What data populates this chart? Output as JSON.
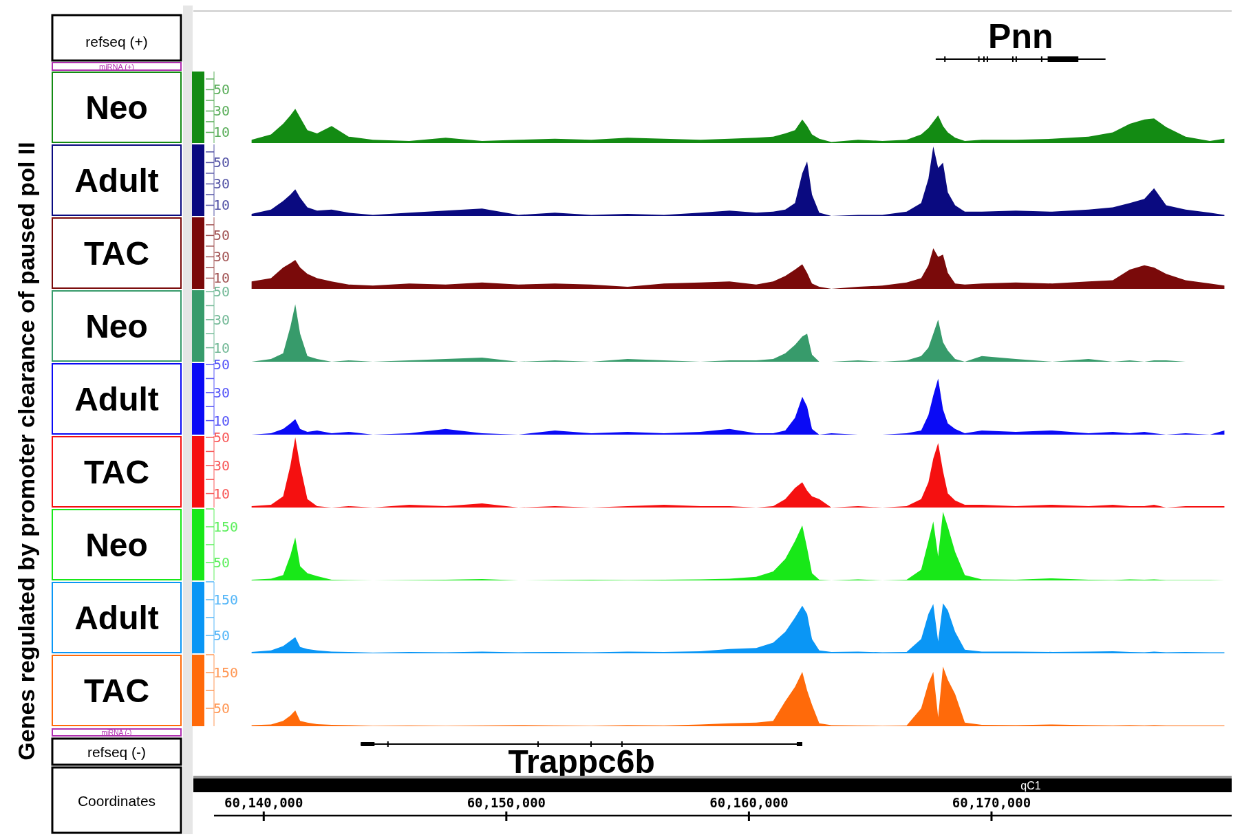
{
  "chart_data": [
    {
      "type": "area",
      "ylabel": "Neo",
      "annotations": [
        "Genes regulated by promoter clearance of paused pol II",
        "refseq (+)",
        "miRNA (+)",
        "Pnn"
      ],
      "tick_labels": "y",
      "xlim": [
        60137950,
        60179900
      ],
      "ylim": [
        0,
        67
      ],
      "yticks": [
        10,
        {
          "value": 20,
          "label": null
        },
        30,
        {
          "value": 40,
          "label": null
        },
        50,
        {
          "value": 60,
          "label": null
        }
      ],
      "x": [
        60139500,
        60140300,
        60140800,
        60141100,
        60141300,
        60141500,
        60141800,
        60142200,
        60142800,
        60143500,
        60144500,
        60146000,
        60147500,
        60149000,
        60150500,
        60152000,
        60153500,
        60155000,
        60156500,
        60158000,
        60159200,
        60160300,
        60161000,
        60161500,
        60161900,
        60162200,
        60162400,
        60162600,
        60162900,
        60163400,
        60164500,
        60165500,
        60166500,
        60167100,
        60167400,
        60167600,
        60167800,
        60168000,
        60168200,
        60168500,
        60168900,
        60169600,
        60171000,
        60172500,
        60174000,
        60175000,
        60175700,
        60176300,
        60176700,
        60177200,
        60178000,
        60179000,
        60179600
      ],
      "series": [
        {
          "color": "#138b13",
          "values": [
            3,
            8,
            18,
            26,
            32,
            24,
            12,
            9,
            16,
            6,
            3,
            2,
            5,
            2,
            3,
            4,
            3,
            5,
            4,
            3,
            4,
            5,
            6,
            9,
            12,
            22,
            16,
            8,
            4,
            1,
            3,
            2,
            3,
            8,
            14,
            20,
            26,
            16,
            10,
            5,
            2,
            3,
            3,
            4,
            6,
            10,
            18,
            22,
            23,
            15,
            6,
            2,
            4
          ]
        }
      ]
    },
    {
      "type": "area",
      "ylabel": "Adult",
      "tick_labels": "y",
      "xlim": [
        60137950,
        60179900
      ],
      "ylim": [
        0,
        67
      ],
      "yticks": [
        10,
        {
          "value": 20,
          "label": null
        },
        30,
        {
          "value": 40,
          "label": null
        },
        50,
        {
          "value": 60,
          "label": null
        }
      ],
      "x": [
        60139500,
        60140300,
        60140800,
        60141100,
        60141300,
        60141500,
        60141800,
        60142200,
        60142800,
        60143500,
        60144500,
        60146000,
        60147500,
        60149000,
        60150500,
        60152000,
        60153500,
        60155000,
        60156500,
        60158000,
        60159200,
        60160300,
        60161000,
        60161500,
        60161900,
        60162200,
        60162400,
        60162600,
        60162900,
        60163400,
        60164500,
        60165500,
        60166500,
        60167100,
        60167400,
        60167600,
        60167800,
        60168000,
        60168200,
        60168500,
        60168900,
        60169600,
        60171000,
        60172500,
        60174000,
        60175000,
        60175700,
        60176300,
        60176700,
        60177200,
        60178000,
        60179000,
        60179600
      ],
      "series": [
        {
          "color": "#0a0a80",
          "values": [
            2,
            6,
            14,
            20,
            25,
            17,
            8,
            5,
            6,
            3,
            1,
            3,
            5,
            7,
            1,
            3,
            1,
            2,
            1,
            3,
            5,
            3,
            4,
            6,
            12,
            40,
            51,
            20,
            3,
            0,
            1,
            1,
            4,
            12,
            35,
            65,
            45,
            50,
            22,
            10,
            4,
            4,
            5,
            4,
            6,
            8,
            12,
            16,
            26,
            10,
            6,
            3,
            1
          ]
        }
      ]
    },
    {
      "type": "area",
      "ylabel": "TAC",
      "tick_labels": "y",
      "xlim": [
        60137950,
        60179900
      ],
      "ylim": [
        0,
        67
      ],
      "yticks": [
        10,
        {
          "value": 20,
          "label": null
        },
        30,
        {
          "value": 40,
          "label": null
        },
        50,
        {
          "value": 60,
          "label": null
        }
      ],
      "x": [
        60139500,
        60140300,
        60140800,
        60141100,
        60141300,
        60141500,
        60141800,
        60142200,
        60142800,
        60143500,
        60144500,
        60146000,
        60147500,
        60149000,
        60150500,
        60152000,
        60153500,
        60155000,
        60156500,
        60158000,
        60159200,
        60160300,
        60161000,
        60161500,
        60161900,
        60162200,
        60162400,
        60162600,
        60162900,
        60163400,
        60164500,
        60165500,
        60166500,
        60167100,
        60167400,
        60167600,
        60167800,
        60168000,
        60168200,
        60168500,
        60168900,
        60169600,
        60171000,
        60172500,
        60174000,
        60175000,
        60175700,
        60176300,
        60176700,
        60177200,
        60178000,
        60179000,
        60179600
      ],
      "series": [
        {
          "color": "#7a0a0a",
          "values": [
            7,
            10,
            20,
            24,
            27,
            20,
            14,
            10,
            7,
            4,
            3,
            5,
            4,
            6,
            4,
            5,
            4,
            2,
            5,
            6,
            7,
            4,
            7,
            12,
            18,
            23,
            15,
            5,
            2,
            0,
            2,
            3,
            6,
            10,
            22,
            38,
            30,
            32,
            15,
            5,
            4,
            5,
            6,
            5,
            7,
            8,
            18,
            22,
            20,
            14,
            8,
            5,
            3
          ]
        }
      ]
    },
    {
      "type": "area",
      "ylabel": "Neo",
      "tick_labels": "y",
      "xlim": [
        60137950,
        60179900
      ],
      "ylim": [
        0,
        51
      ],
      "yticks": [
        10,
        {
          "value": 20,
          "label": null
        },
        30,
        {
          "value": 40,
          "label": null
        },
        50
      ],
      "x": [
        60139500,
        60140300,
        60140800,
        60141100,
        60141300,
        60141500,
        60141800,
        60142200,
        60142800,
        60143500,
        60144500,
        60146000,
        60147500,
        60149000,
        60150500,
        60152000,
        60153500,
        60155000,
        60156500,
        60158000,
        60159200,
        60160300,
        60161000,
        60161500,
        60161900,
        60162200,
        60162400,
        60162600,
        60162900,
        60163400,
        60164500,
        60165500,
        60166500,
        60167100,
        60167400,
        60167600,
        60167800,
        60168000,
        60168200,
        60168500,
        60168900,
        60169600,
        60171000,
        60172500,
        60174000,
        60175000,
        60175700,
        60176300,
        60176700,
        60177200,
        60178000,
        60179000,
        60179600
      ],
      "series": [
        {
          "color": "#379b6b",
          "values": [
            0,
            2,
            6,
            25,
            41,
            20,
            4,
            2,
            0,
            1,
            0,
            1,
            2,
            3,
            0,
            1,
            0,
            2,
            1,
            0,
            1,
            1,
            2,
            6,
            12,
            18,
            20,
            5,
            0,
            0,
            1,
            0,
            1,
            4,
            10,
            20,
            30,
            14,
            8,
            2,
            0,
            4,
            2,
            0,
            2,
            0,
            1,
            0,
            1,
            1,
            0,
            0,
            0
          ]
        }
      ]
    },
    {
      "type": "area",
      "ylabel": "Adult",
      "tick_labels": "y",
      "xlim": [
        60137950,
        60179900
      ],
      "ylim": [
        0,
        51
      ],
      "yticks": [
        10,
        {
          "value": 20,
          "label": null
        },
        30,
        {
          "value": 40,
          "label": null
        },
        50
      ],
      "x": [
        60139500,
        60140300,
        60140800,
        60141100,
        60141300,
        60141500,
        60141800,
        60142200,
        60142800,
        60143500,
        60144500,
        60146000,
        60147500,
        60149000,
        60150500,
        60152000,
        60153500,
        60155000,
        60156500,
        60158000,
        60159200,
        60160300,
        60161000,
        60161500,
        60161900,
        60162200,
        60162400,
        60162600,
        60162900,
        60163400,
        60164500,
        60165500,
        60166500,
        60167100,
        60167400,
        60167600,
        60167800,
        60168000,
        60168200,
        60168500,
        60168900,
        60169600,
        60171000,
        60172500,
        60174000,
        60175000,
        60175700,
        60176300,
        60176700,
        60177200,
        60178000,
        60179000,
        60179600
      ],
      "series": [
        {
          "color": "#0a0af5",
          "values": [
            0,
            1,
            4,
            8,
            11,
            4,
            2,
            3,
            1,
            2,
            0,
            1,
            4,
            1,
            0,
            3,
            1,
            2,
            1,
            2,
            4,
            1,
            1,
            3,
            12,
            27,
            20,
            4,
            0,
            1,
            0,
            0,
            1,
            3,
            14,
            28,
            40,
            18,
            8,
            4,
            1,
            3,
            2,
            3,
            1,
            2,
            1,
            2,
            1,
            0,
            1,
            0,
            3
          ]
        }
      ]
    },
    {
      "type": "area",
      "ylabel": "TAC",
      "tick_labels": "y",
      "xlim": [
        60137950,
        60179900
      ],
      "ylim": [
        0,
        51
      ],
      "yticks": [
        10,
        {
          "value": 20,
          "label": null
        },
        30,
        {
          "value": 40,
          "label": null
        },
        50
      ],
      "x": [
        60139500,
        60140300,
        60140800,
        60141100,
        60141300,
        60141500,
        60141800,
        60142200,
        60142800,
        60143500,
        60144500,
        60146000,
        60147500,
        60149000,
        60150500,
        60152000,
        60153500,
        60155000,
        60156500,
        60158000,
        60159200,
        60160300,
        60161000,
        60161500,
        60161900,
        60162200,
        60162400,
        60162600,
        60162900,
        60163400,
        60164500,
        60165500,
        60166500,
        60167100,
        60167400,
        60167600,
        60167800,
        60168000,
        60168200,
        60168500,
        60168900,
        60169600,
        60171000,
        60172500,
        60174000,
        60175000,
        60175700,
        60176300,
        60176700,
        60177200,
        60178000,
        60179000,
        60179600
      ],
      "series": [
        {
          "color": "#f51010",
          "values": [
            1,
            2,
            8,
            30,
            50,
            30,
            6,
            1,
            0,
            1,
            0,
            2,
            1,
            3,
            0,
            1,
            0,
            1,
            2,
            1,
            1,
            0,
            1,
            6,
            14,
            18,
            12,
            8,
            6,
            0,
            1,
            0,
            1,
            6,
            18,
            35,
            46,
            26,
            10,
            5,
            2,
            2,
            1,
            2,
            1,
            2,
            1,
            1,
            2,
            0,
            1,
            1,
            1
          ]
        }
      ]
    },
    {
      "type": "area",
      "ylabel": "Neo",
      "tick_labels": "y",
      "xlim": [
        60137950,
        60179900
      ],
      "ylim": [
        0,
        200
      ],
      "yticks": [
        50,
        {
          "value": 100,
          "label": null
        },
        150,
        {
          "value": 200,
          "label": null
        }
      ],
      "x": [
        60139500,
        60140300,
        60140800,
        60141100,
        60141300,
        60141500,
        60141800,
        60142200,
        60142800,
        60143500,
        60144500,
        60146000,
        60147500,
        60149000,
        60150500,
        60152000,
        60153500,
        60155000,
        60156500,
        60158000,
        60159200,
        60160300,
        60161000,
        60161500,
        60161900,
        60162200,
        60162400,
        60162600,
        60162900,
        60163400,
        60164500,
        60165500,
        60166500,
        60167100,
        60167400,
        60167600,
        60167800,
        60168000,
        60168200,
        60168500,
        60168900,
        60169600,
        60171000,
        60172500,
        60174000,
        60175000,
        60175700,
        60176300,
        60176700,
        60177200,
        60178000,
        60179000,
        60179600
      ],
      "series": [
        {
          "color": "#18e818",
          "values": [
            2,
            5,
            15,
            70,
            120,
            40,
            20,
            12,
            2,
            1,
            0,
            1,
            2,
            4,
            0,
            1,
            2,
            1,
            2,
            3,
            5,
            10,
            25,
            60,
            110,
            154,
            90,
            20,
            2,
            0,
            3,
            0,
            2,
            30,
            110,
            165,
            67,
            192,
            150,
            80,
            15,
            3,
            2,
            6,
            2,
            1,
            3,
            2,
            3,
            1,
            1,
            1,
            0
          ]
        }
      ]
    },
    {
      "type": "area",
      "ylabel": "Adult",
      "tick_labels": "y",
      "xlim": [
        60137950,
        60179900
      ],
      "ylim": [
        0,
        200
      ],
      "yticks": [
        50,
        {
          "value": 100,
          "label": null
        },
        150,
        {
          "value": 200,
          "label": null
        }
      ],
      "x": [
        60139500,
        60140300,
        60140800,
        60141100,
        60141300,
        60141500,
        60141800,
        60142200,
        60142800,
        60143500,
        60144500,
        60146000,
        60147500,
        60149000,
        60150500,
        60152000,
        60153500,
        60155000,
        60156500,
        60158000,
        60159200,
        60160300,
        60161000,
        60161500,
        60161900,
        60162200,
        60162400,
        60162600,
        60162900,
        60163400,
        60164500,
        60165500,
        60166500,
        60167100,
        60167400,
        60167600,
        60167800,
        60168000,
        60168200,
        60168500,
        60168900,
        60169600,
        60171000,
        60172500,
        60174000,
        60175000,
        60175700,
        60176300,
        60176700,
        60177200,
        60178000,
        60179000,
        60179600
      ],
      "series": [
        {
          "color": "#0a96f5",
          "values": [
            4,
            8,
            20,
            35,
            45,
            18,
            12,
            8,
            5,
            4,
            2,
            4,
            3,
            5,
            3,
            4,
            3,
            5,
            4,
            6,
            12,
            15,
            30,
            60,
            100,
            133,
            110,
            40,
            8,
            4,
            5,
            3,
            4,
            40,
            110,
            138,
            33,
            140,
            120,
            60,
            10,
            5,
            5,
            4,
            5,
            6,
            4,
            3,
            5,
            3,
            4,
            3,
            3
          ]
        }
      ]
    },
    {
      "type": "area",
      "ylabel": "TAC",
      "annotations": [
        "miRNA (-)",
        "refseq (-)",
        "Trappc6b",
        "Coordinates",
        "qC1"
      ],
      "xlim": [
        60137950,
        60179900
      ],
      "ylim": [
        0,
        200
      ],
      "yticks": [
        50,
        {
          "value": 100,
          "label": null
        },
        150,
        {
          "value": 200,
          "label": null
        }
      ],
      "xticks": [
        {
          "value": 60140000,
          "label": "60,140,000"
        },
        {
          "value": 60150000,
          "label": "60,150,000"
        },
        {
          "value": 60160000,
          "label": "60,160,000"
        },
        {
          "value": 60170000,
          "label": "60,170,000"
        }
      ],
      "x": [
        60139500,
        60140300,
        60140800,
        60141100,
        60141300,
        60141500,
        60141800,
        60142200,
        60142800,
        60143500,
        60144500,
        60146000,
        60147500,
        60149000,
        60150500,
        60152000,
        60153500,
        60155000,
        60156500,
        60158000,
        60159200,
        60160300,
        60161000,
        60161500,
        60161900,
        60162200,
        60162400,
        60162600,
        60162900,
        60163400,
        60164500,
        60165500,
        60166500,
        60167100,
        60167400,
        60167600,
        60167800,
        60168000,
        60168200,
        60168500,
        60168900,
        60169600,
        60171000,
        60172500,
        60174000,
        60175000,
        60175700,
        60176300,
        60176700,
        60177200,
        60178000,
        60179000,
        60179600
      ],
      "series": [
        {
          "color": "#ff6a0a",
          "values": [
            3,
            5,
            15,
            30,
            44,
            15,
            10,
            6,
            4,
            3,
            1,
            2,
            1,
            2,
            3,
            2,
            1,
            3,
            2,
            5,
            8,
            10,
            15,
            70,
            110,
            152,
            100,
            60,
            8,
            3,
            2,
            1,
            2,
            50,
            120,
            152,
            25,
            167,
            130,
            90,
            10,
            4,
            3,
            5,
            3,
            2,
            3,
            2,
            3,
            2,
            2,
            2,
            2
          ]
        }
      ]
    }
  ]
}
